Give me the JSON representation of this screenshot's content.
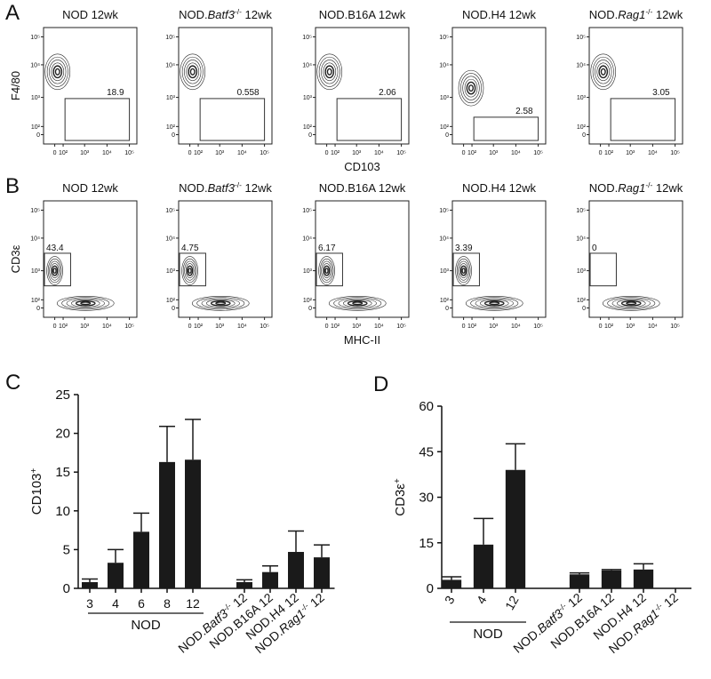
{
  "flow_ticks": [
    "0",
    "10²",
    "10³",
    "10⁴",
    "10⁵"
  ],
  "panels": [
    {
      "letter": "A",
      "x_label": "CD103",
      "y_label": "F4/80",
      "plots": [
        {
          "title": "NOD 12wk",
          "gate": 18.9
        },
        {
          "title": {
            "pre": "NOD.",
            "gene": "Batf3",
            "sup": "-/-",
            "post": " 12wk"
          },
          "gate": 0.558
        },
        {
          "title": "NOD.B16A 12wk",
          "gate": 2.06
        },
        {
          "title": "NOD.H4 12wk",
          "gate": 2.58
        },
        {
          "title": {
            "pre": "NOD.",
            "gene": "Rag1",
            "sup": "-/-",
            "post": " 12wk"
          },
          "gate": 3.05
        }
      ]
    },
    {
      "letter": "B",
      "x_label": "MHC-II",
      "y_label": "CD3ε",
      "plots": [
        {
          "title": "NOD 12wk",
          "gate": 43.4
        },
        {
          "title": {
            "pre": "NOD.",
            "gene": "Batf3",
            "sup": "-/-",
            "post": " 12wk"
          },
          "gate": 4.75
        },
        {
          "title": "NOD.B16A 12wk",
          "gate": 6.17
        },
        {
          "title": "NOD.H4 12wk",
          "gate": 3.39
        },
        {
          "title": {
            "pre": "NOD.",
            "gene": "Rag1",
            "sup": "-/-",
            "post": " 12wk"
          },
          "gate": 0
        }
      ]
    }
  ],
  "chart_data": [
    {
      "type": "bar",
      "letter": "C",
      "y_label": {
        "pre": "CD103",
        "sup": "+"
      },
      "group_label": "NOD",
      "color": "#1a1a1a",
      "categories": [
        "3",
        "4",
        "6",
        "8",
        "12",
        null,
        {
          "pre": "NOD.",
          "gene": "Batf3",
          "sup": "-/-",
          "post": " 12"
        },
        "NOD.B16A 12",
        "NOD.H4 12",
        {
          "pre": "NOD.",
          "gene": "Rag1",
          "sup": "-/-",
          "post": " 12"
        }
      ],
      "values": [
        0.8,
        3.3,
        7.3,
        16.3,
        16.6,
        null,
        0.8,
        2.1,
        4.7,
        4.0
      ],
      "errors": [
        0.4,
        1.7,
        2.4,
        4.6,
        5.2,
        null,
        0.3,
        0.8,
        2.7,
        1.6
      ],
      "ylim": [
        0,
        25
      ],
      "yticks": [
        0,
        5,
        10,
        15,
        20,
        25
      ]
    },
    {
      "type": "bar",
      "letter": "D",
      "y_label": {
        "pre": "CD3ε",
        "sup": "+"
      },
      "group_label": "NOD",
      "color": "#1a1a1a",
      "categories": [
        "3",
        "4",
        "12",
        null,
        {
          "pre": "NOD.",
          "gene": "Batf3",
          "sup": "-/-",
          "post": " 12"
        },
        "NOD.B16A 12",
        "NOD.H4 12",
        {
          "pre": "NOD.",
          "gene": "Rag1",
          "sup": "-/-",
          "post": " 12"
        }
      ],
      "values": [
        2.8,
        14.4,
        39,
        null,
        4.6,
        5.9,
        6.2,
        0
      ],
      "errors": [
        1.0,
        8.6,
        8.6,
        null,
        0.5,
        0.3,
        1.9,
        0
      ],
      "ylim": [
        0,
        60
      ],
      "yticks": [
        0,
        15,
        30,
        45,
        60
      ]
    }
  ]
}
